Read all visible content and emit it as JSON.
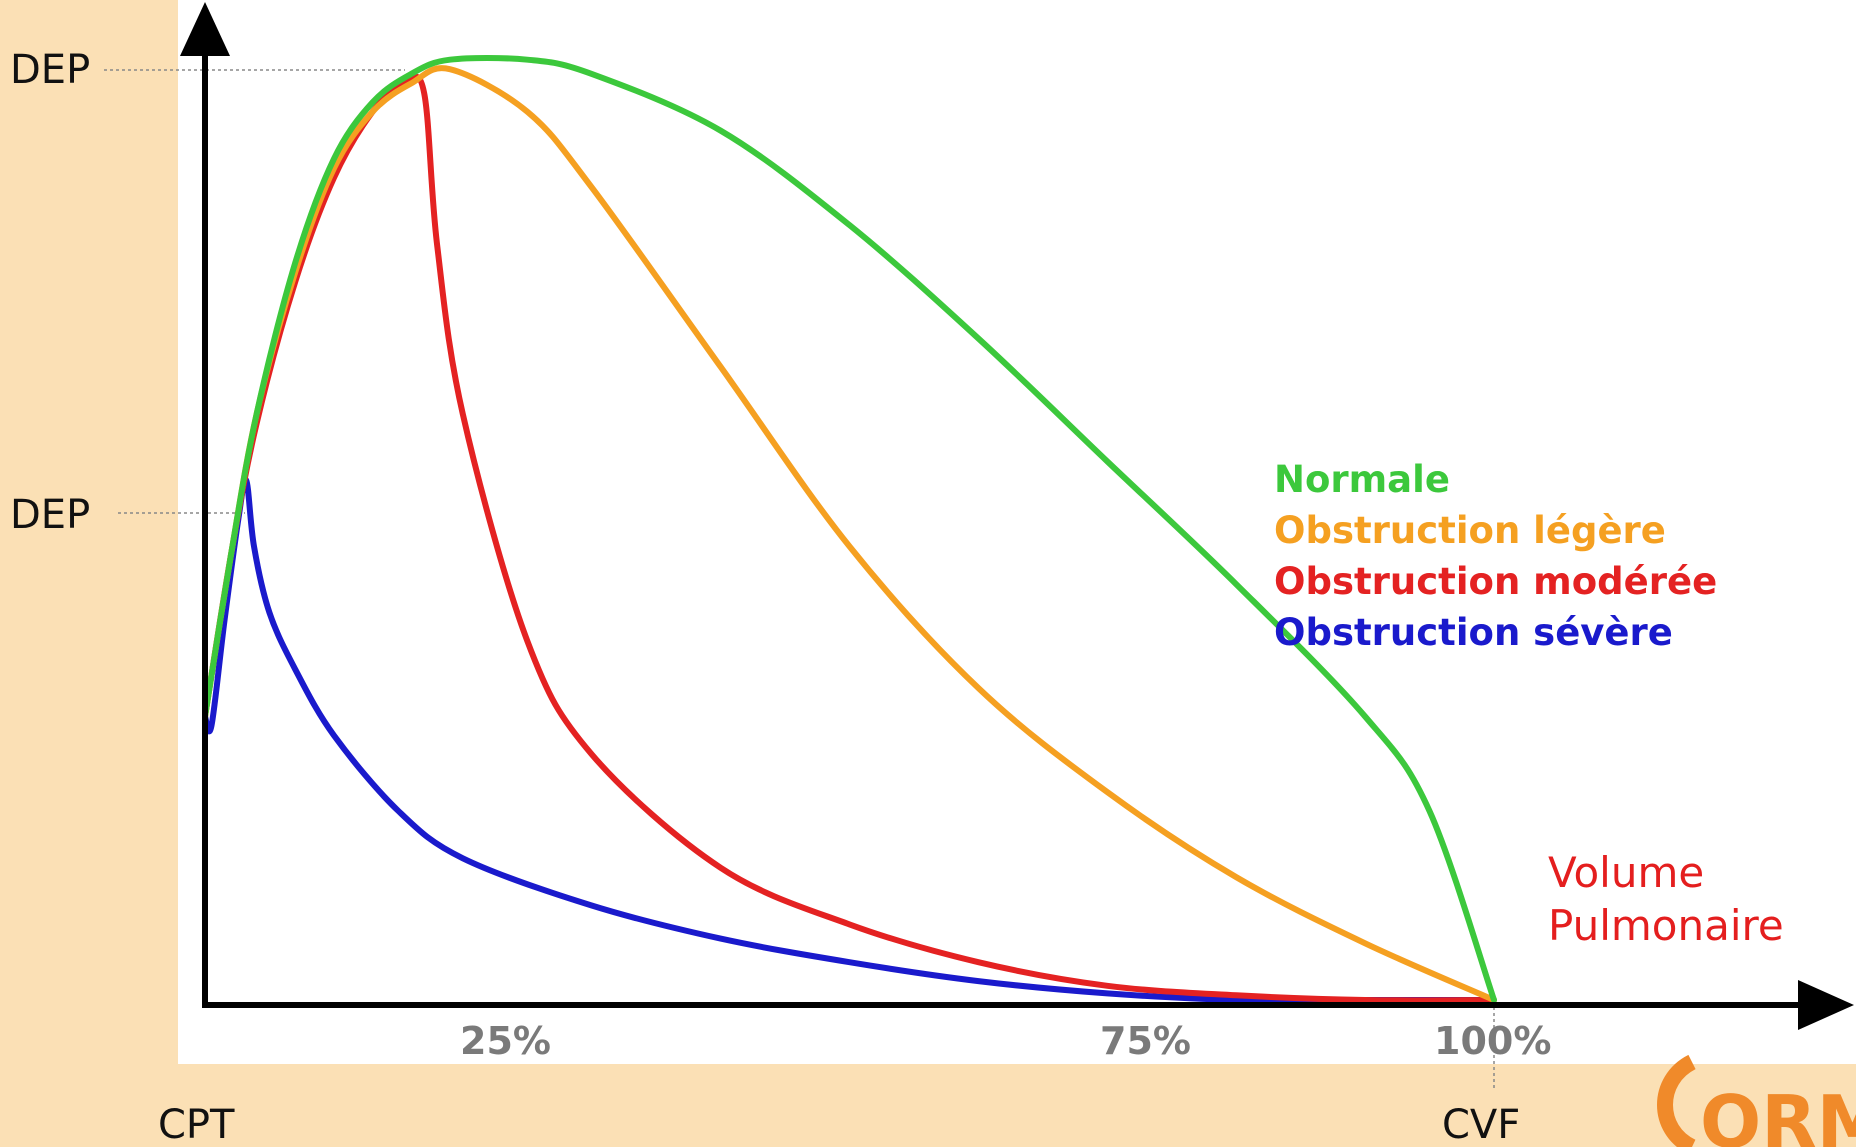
{
  "chart_data": {
    "type": "line",
    "title": "",
    "xlabel": [
      "Volume",
      "Pulmonaire"
    ],
    "ylabel": "",
    "x_start_label": "CPT",
    "x_end_label": "CVF",
    "y_markers": [
      "DEP",
      "DEP"
    ],
    "x_ticks": [
      "25%",
      "75%",
      "100%"
    ],
    "xlim": [
      0,
      100
    ],
    "ylim": [
      0,
      100
    ],
    "series": [
      {
        "name": "Normale",
        "color": "#3cc83c",
        "x": [
          0,
          2,
          4,
          7,
          10,
          13,
          16,
          19,
          25,
          30,
          40,
          50,
          60,
          70,
          80,
          90,
          95,
          100
        ],
        "y": [
          30,
          47,
          62,
          78,
          89,
          95,
          98,
          99.5,
          99.5,
          98,
          92,
          82,
          70,
          57,
          44,
          30,
          20,
          0
        ]
      },
      {
        "name": "Obstruction légère",
        "color": "#f5a021",
        "x": [
          0,
          2,
          4,
          7,
          10,
          13,
          16,
          19,
          25,
          30,
          40,
          50,
          60,
          70,
          80,
          90,
          100
        ],
        "y": [
          30,
          47,
          62,
          77,
          88,
          94,
          97,
          98.5,
          94,
          86,
          67,
          48,
          33,
          22,
          13,
          6,
          0
        ]
      },
      {
        "name": "Obstruction modérée",
        "color": "#e42222",
        "x": [
          0,
          2,
          4,
          7,
          10,
          13,
          15.5,
          17,
          18,
          20,
          25,
          30,
          40,
          50,
          60,
          70,
          80,
          90,
          100
        ],
        "y": [
          30,
          47,
          61,
          76,
          87,
          94,
          97,
          96,
          80,
          62,
          38,
          26,
          14,
          8,
          4,
          1.5,
          0.5,
          0,
          0
        ]
      },
      {
        "name": "Obstruction sévère",
        "color": "#1a1acc",
        "x": [
          0,
          0.5,
          1.5,
          2.6,
          3.2,
          3.8,
          5,
          7,
          10,
          15,
          20,
          30,
          40,
          50,
          60,
          70,
          80,
          90,
          100
        ],
        "y": [
          30,
          29,
          40,
          51,
          55,
          48,
          41,
          35,
          28,
          20,
          15,
          10,
          6.5,
          4,
          2,
          0.7,
          0,
          0,
          0
        ]
      }
    ]
  },
  "logo_text": "ORM"
}
